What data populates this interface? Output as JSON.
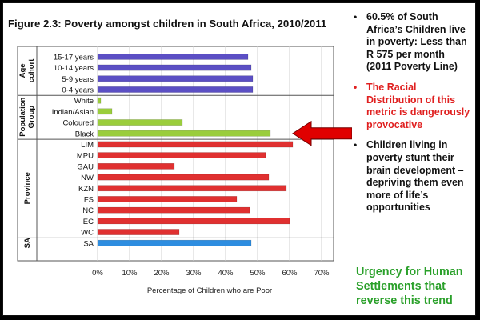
{
  "title": "Figure 2.3: Poverty amongst children in South Africa, 2010/2011",
  "bullets": [
    {
      "text": "60.5% of South Africa’s Children live in poverty: Less than R 575 per month (2011 Poverty Line)",
      "color": "#111111"
    },
    {
      "text": "The Racial Distribution of this metric is dangerously provocative",
      "color": "#e02020"
    },
    {
      "text": "Children living in poverty stunt their brain development – depriving them even more of life’s opportunities",
      "color": "#111111"
    }
  ],
  "urgency": "Urgency for Human Settlements that reverse this trend",
  "arrow_color": "#e00000",
  "chart_data": {
    "type": "bar",
    "orientation": "horizontal",
    "title": "",
    "xlabel": "Percentage of Children who are Poor",
    "ylabel": "",
    "xlim": [
      0,
      70
    ],
    "xticks": [
      "0%",
      "10%",
      "20%",
      "30%",
      "40%",
      "50%",
      "60%",
      "70%"
    ],
    "grid": true,
    "groups": [
      {
        "name": "Age cohort",
        "color": "#5b4fc4",
        "categories": [
          "15-17 years",
          "10-14 years",
          "5-9 years",
          "0-4 years"
        ],
        "values": [
          47,
          48,
          48.5,
          48.5
        ]
      },
      {
        "name": "Population Group",
        "color": "#9acd3c",
        "categories": [
          "White",
          "Indian/Asian",
          "Coloured",
          "Black"
        ],
        "values": [
          1,
          4.5,
          26.5,
          54
        ]
      },
      {
        "name": "Province",
        "color": "#e03030",
        "categories": [
          "LIM",
          "MPU",
          "GAU",
          "NW",
          "KZN",
          "FS",
          "NC",
          "EC",
          "WC"
        ],
        "values": [
          61,
          52.5,
          24,
          53.5,
          59,
          43.5,
          47.5,
          60,
          25.5
        ]
      },
      {
        "name": "SA",
        "color": "#2d8de0",
        "categories": [
          "SA"
        ],
        "values": [
          48
        ]
      }
    ]
  }
}
